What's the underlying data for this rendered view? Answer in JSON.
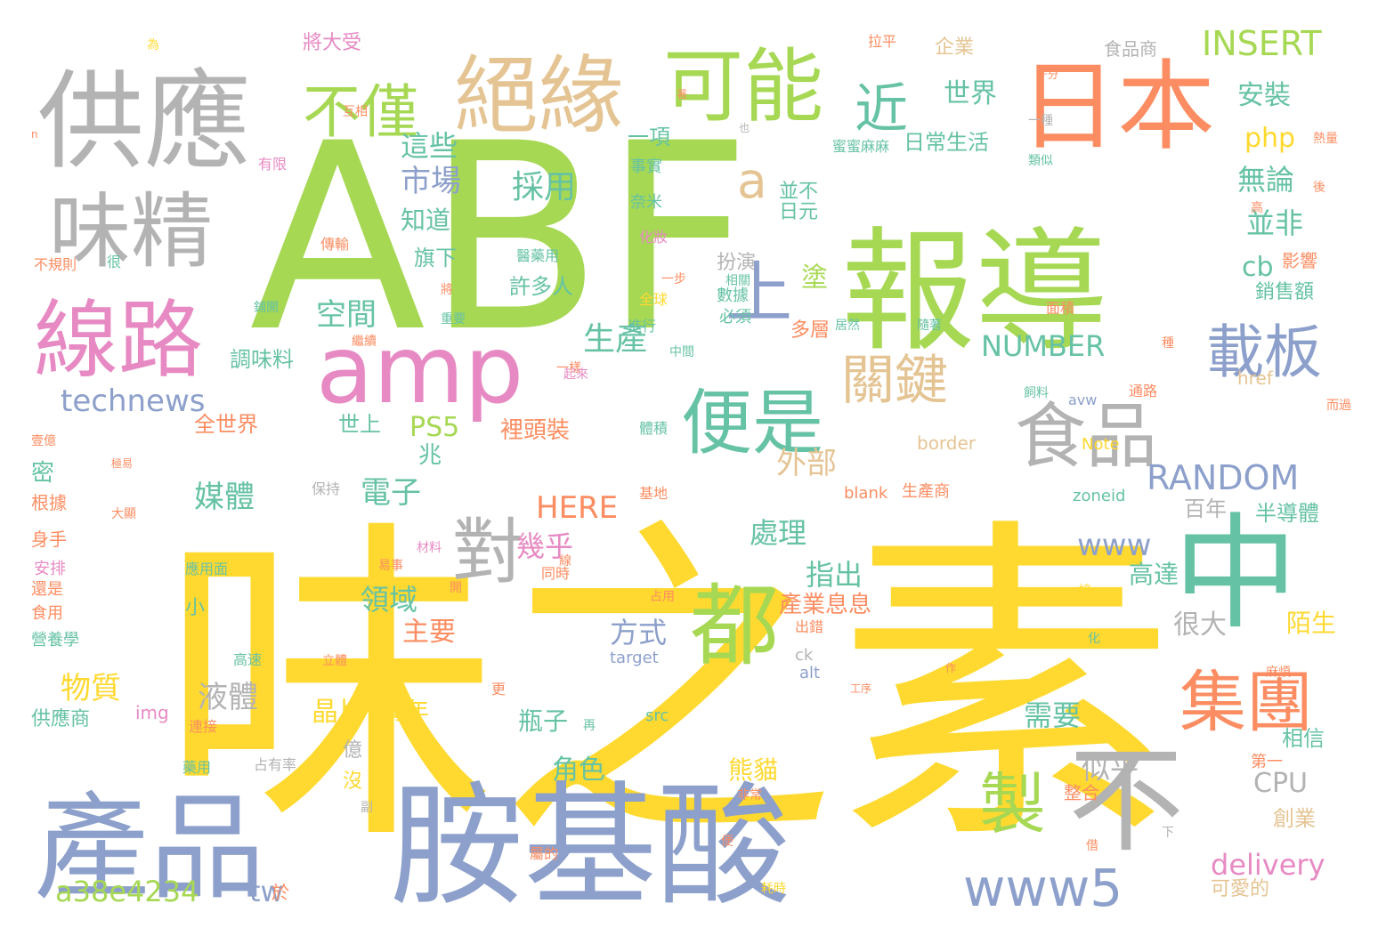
{
  "palette": {
    "yellow": "#ffd92f",
    "green": "#a6d854",
    "gray": "#b3b3b3",
    "blue": "#8da0cb",
    "pink": "#e78ac3",
    "teal": "#66c2a5",
    "orange": "#fc8d62",
    "tan": "#e5c494"
  },
  "words": [
    "味之素",
    "ABF",
    "報導",
    "胺基酸",
    "產品",
    "供應",
    "日本",
    "中",
    "不",
    "絕緣",
    "可能",
    "味精",
    "線路",
    "amp",
    "都",
    "食品",
    "便是",
    "集團",
    "不僅",
    "載板",
    "對",
    "製",
    "www5",
    "上",
    "近",
    "關鍵",
    "a",
    "technews",
    "NUMBER",
    "RANDOM",
    "INSERT",
    "delivery",
    "a38e4234",
    "tw",
    "世界",
    "安裝",
    "php",
    "這些",
    "市場",
    "採用",
    "無論",
    "並非",
    "cb",
    "空間",
    "生產",
    "PS5",
    "外部",
    "處理",
    "www",
    "指出",
    "領域",
    "電子",
    "幾乎",
    "媒體",
    "液體",
    "物質",
    "晶片",
    "方式",
    "很大",
    "需要",
    "似乎",
    "CPU",
    "HERE",
    "塗",
    "許多人",
    "扮演",
    "並不",
    "日元",
    "知道",
    "旗下",
    "調味料",
    "全世界",
    "世上",
    "裡頭裝",
    "每年",
    "瓶子",
    "角色",
    "熊貓",
    "主要",
    "產業息息",
    "高達",
    "陌生",
    "百年",
    "半導體",
    "銷售額",
    "影響",
    "日常生活",
    "一項",
    "企業",
    "將大受",
    "食品商",
    "拉平",
    "十分",
    "互相",
    "有限",
    "傳輸",
    "不規則",
    "很",
    "根據",
    "保持",
    "應用面",
    "身手",
    "安排",
    "還是",
    "食用",
    "營養學",
    "供應商",
    "img",
    "連接",
    "藥用",
    "占有率",
    "億",
    "沒",
    "副",
    "屬的",
    "便",
    "借",
    "下",
    "可愛的",
    "創業",
    "第一",
    "相信",
    "整合",
    "通路",
    "href",
    "Note",
    "border",
    "blank",
    "zoneid",
    "avw",
    "target",
    "alt",
    "ck",
    "src",
    "工序",
    "作",
    "事實",
    "類似",
    "奈米",
    "化妝",
    "醫藥用",
    "一步",
    "全球",
    "進行",
    "中間",
    "一樣",
    "必須",
    "數據",
    "相關",
    "多層",
    "居然",
    "隨著",
    "種",
    "面積",
    "飼料",
    "體積",
    "基地",
    "同時",
    "占用",
    "出錯",
    "高速",
    "立體",
    "更",
    "非常",
    "耗時",
    "於",
    "生產商",
    "蜜蜜麻麻",
    "一種",
    "熱量",
    "後",
    "高",
    "而過",
    "密",
    "小",
    "兆",
    "n",
    "為",
    "將",
    "重要",
    "鋪開",
    "繼續",
    "起來",
    "再",
    "線",
    "接",
    "化",
    "麻煩",
    "壹億",
    "大顯",
    "極易",
    "易事",
    "材料",
    "開",
    "著",
    "也",
    "週"
  ]
}
